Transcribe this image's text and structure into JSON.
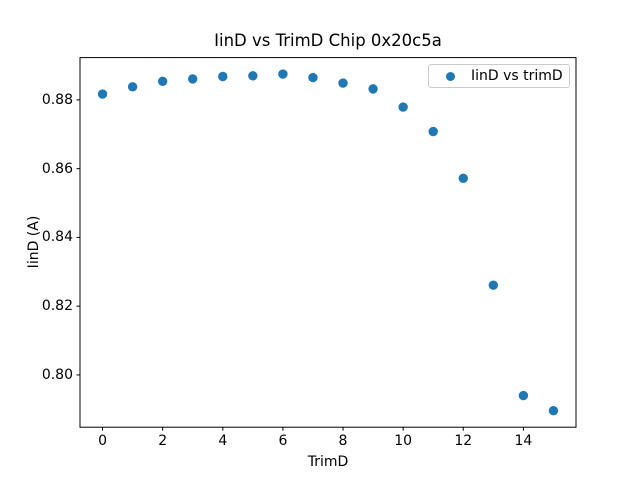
{
  "figure": {
    "background": "#ffffff"
  },
  "chart_data": {
    "type": "scatter",
    "title": "IinD vs TrimD Chip 0x20c5a",
    "xlabel": "TrimD",
    "ylabel": "IinD (A)",
    "legend": {
      "label": "IinD vs trimD",
      "location": "upper right",
      "marker": "dot"
    },
    "marker_color": "#1f77b4",
    "axis_color": "#000000",
    "grid": false,
    "x": [
      0,
      1,
      2,
      3,
      4,
      5,
      6,
      7,
      8,
      9,
      10,
      11,
      12,
      13,
      14,
      15
    ],
    "y": [
      0.8817,
      0.8838,
      0.8854,
      0.8861,
      0.8868,
      0.887,
      0.8875,
      0.8865,
      0.8849,
      0.8832,
      0.8779,
      0.8708,
      0.8572,
      0.8261,
      0.794,
      0.7896
    ],
    "xlim": [
      -0.75,
      15.75
    ],
    "ylim": [
      0.7848,
      0.8923
    ],
    "xticks": [
      0,
      2,
      4,
      6,
      8,
      10,
      12,
      14
    ],
    "xtick_labels": [
      "0",
      "2",
      "4",
      "6",
      "8",
      "10",
      "12",
      "14"
    ],
    "yticks": [
      0.8,
      0.82,
      0.84,
      0.86,
      0.88
    ],
    "ytick_labels": [
      "0.80",
      "0.82",
      "0.84",
      "0.86",
      "0.88"
    ]
  }
}
